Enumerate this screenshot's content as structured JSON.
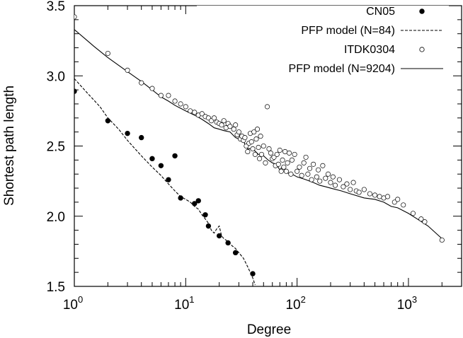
{
  "chart_data": {
    "type": "scatter",
    "xscale": "log",
    "xlabel": "Degree",
    "ylabel": "Shortest path length",
    "xlim": [
      1,
      3000
    ],
    "ylim": [
      1.5,
      3.5
    ],
    "grid": false,
    "legend_position": "top-right",
    "x_ticks": [
      {
        "value": 1,
        "base": "10",
        "exp": "0"
      },
      {
        "value": 10,
        "base": "10",
        "exp": "1"
      },
      {
        "value": 100,
        "base": "10",
        "exp": "2"
      },
      {
        "value": 1000,
        "base": "10",
        "exp": "3"
      }
    ],
    "y_ticks": [
      "1.5",
      "2.0",
      "2.5",
      "3.0",
      "3.5"
    ],
    "series": [
      {
        "name": "CN05",
        "style": "filled-circle",
        "points": [
          [
            1,
            2.89
          ],
          [
            2,
            2.68
          ],
          [
            3,
            2.59
          ],
          [
            4,
            2.56
          ],
          [
            5,
            2.41
          ],
          [
            6,
            2.36
          ],
          [
            7,
            2.26
          ],
          [
            8,
            2.43
          ],
          [
            9,
            2.13
          ],
          [
            12,
            2.09
          ],
          [
            13,
            2.11
          ],
          [
            15,
            2.01
          ],
          [
            16,
            1.93
          ],
          [
            20,
            1.86
          ],
          [
            24,
            1.81
          ],
          [
            28,
            1.74
          ],
          [
            40,
            1.59
          ]
        ]
      },
      {
        "name": "PFP model (N=84)",
        "style": "dashed-line",
        "points": [
          [
            1,
            2.98
          ],
          [
            1.3,
            2.88
          ],
          [
            1.7,
            2.78
          ],
          [
            2,
            2.7
          ],
          [
            2.5,
            2.62
          ],
          [
            3,
            2.54
          ],
          [
            4,
            2.43
          ],
          [
            5,
            2.35
          ],
          [
            6,
            2.29
          ],
          [
            7,
            2.23
          ],
          [
            8,
            2.18
          ],
          [
            9,
            2.14
          ],
          [
            10,
            2.12
          ],
          [
            11,
            2.1
          ],
          [
            12,
            2.07
          ],
          [
            13,
            2.05
          ],
          [
            14,
            2.01
          ],
          [
            15,
            1.98
          ],
          [
            16,
            1.95
          ],
          [
            17,
            1.9
          ],
          [
            18,
            1.88
          ],
          [
            19,
            1.91
          ],
          [
            20,
            1.93
          ],
          [
            21,
            1.86
          ],
          [
            22,
            1.84
          ],
          [
            24,
            1.82
          ],
          [
            26,
            1.79
          ],
          [
            28,
            1.77
          ],
          [
            30,
            1.74
          ],
          [
            33,
            1.7
          ],
          [
            36,
            1.64
          ],
          [
            40,
            1.56
          ],
          [
            42,
            1.51
          ]
        ]
      },
      {
        "name": "ITDK0304",
        "style": "open-circle",
        "points": [
          [
            1,
            3.42
          ],
          [
            2,
            3.16
          ],
          [
            3,
            3.04
          ],
          [
            4,
            2.95
          ],
          [
            5,
            2.91
          ],
          [
            6,
            2.86
          ],
          [
            7,
            2.86
          ],
          [
            8,
            2.82
          ],
          [
            9,
            2.8
          ],
          [
            10,
            2.78
          ],
          [
            11,
            2.75
          ],
          [
            12,
            2.74
          ],
          [
            13,
            2.72
          ],
          [
            14,
            2.73
          ],
          [
            15,
            2.71
          ],
          [
            16,
            2.7
          ],
          [
            17,
            2.68
          ],
          [
            18,
            2.7
          ],
          [
            19,
            2.67
          ],
          [
            20,
            2.66
          ],
          [
            21,
            2.65
          ],
          [
            22,
            2.68
          ],
          [
            23,
            2.63
          ],
          [
            24,
            2.66
          ],
          [
            25,
            2.64
          ],
          [
            27,
            2.62
          ],
          [
            28,
            2.65
          ],
          [
            29,
            2.58
          ],
          [
            30,
            2.6
          ],
          [
            31,
            2.55
          ],
          [
            32,
            2.57
          ],
          [
            33,
            2.54
          ],
          [
            34,
            2.56
          ],
          [
            35,
            2.5
          ],
          [
            36,
            2.46
          ],
          [
            37,
            2.52
          ],
          [
            38,
            2.59
          ],
          [
            39,
            2.53
          ],
          [
            40,
            2.48
          ],
          [
            41,
            2.6
          ],
          [
            42,
            2.44
          ],
          [
            43,
            2.55
          ],
          [
            44,
            2.62
          ],
          [
            45,
            2.49
          ],
          [
            46,
            2.41
          ],
          [
            47,
            2.57
          ],
          [
            48,
            2.44
          ],
          [
            50,
            2.5
          ],
          [
            52,
            2.38
          ],
          [
            54,
            2.78
          ],
          [
            56,
            2.48
          ],
          [
            58,
            2.45
          ],
          [
            60,
            2.41
          ],
          [
            62,
            2.42
          ],
          [
            64,
            2.36
          ],
          [
            66,
            2.44
          ],
          [
            68,
            2.37
          ],
          [
            70,
            2.47
          ],
          [
            72,
            2.32
          ],
          [
            74,
            2.4
          ],
          [
            76,
            2.35
          ],
          [
            78,
            2.46
          ],
          [
            80,
            2.32
          ],
          [
            82,
            2.38
          ],
          [
            85,
            2.45
          ],
          [
            88,
            2.3
          ],
          [
            90,
            2.4
          ],
          [
            95,
            2.44
          ],
          [
            100,
            2.32
          ],
          [
            105,
            2.35
          ],
          [
            110,
            2.29
          ],
          [
            115,
            2.38
          ],
          [
            120,
            2.42
          ],
          [
            125,
            2.3
          ],
          [
            130,
            2.34
          ],
          [
            135,
            2.26
          ],
          [
            140,
            2.37
          ],
          [
            150,
            2.28
          ],
          [
            155,
            2.33
          ],
          [
            160,
            2.25
          ],
          [
            170,
            2.36
          ],
          [
            180,
            2.27
          ],
          [
            190,
            2.3
          ],
          [
            200,
            2.24
          ],
          [
            210,
            2.28
          ],
          [
            220,
            2.22
          ],
          [
            240,
            2.26
          ],
          [
            260,
            2.21
          ],
          [
            280,
            2.23
          ],
          [
            300,
            2.19
          ],
          [
            320,
            2.24
          ],
          [
            340,
            2.18
          ],
          [
            360,
            2.17
          ],
          [
            400,
            2.19
          ],
          [
            450,
            2.16
          ],
          [
            500,
            2.15
          ],
          [
            550,
            2.14
          ],
          [
            600,
            2.13
          ],
          [
            650,
            2.14
          ],
          [
            750,
            2.1
          ],
          [
            800,
            2.12
          ],
          [
            900,
            2.08
          ],
          [
            1100,
            2.02
          ],
          [
            1300,
            1.98
          ],
          [
            1400,
            1.96
          ],
          [
            2000,
            1.83
          ]
        ]
      },
      {
        "name": "PFP model (N=9204)",
        "style": "solid-line",
        "points": [
          [
            1,
            3.33
          ],
          [
            1.5,
            3.21
          ],
          [
            2,
            3.13
          ],
          [
            3,
            3.03
          ],
          [
            4,
            2.96
          ],
          [
            5,
            2.9
          ],
          [
            6,
            2.85
          ],
          [
            7,
            2.82
          ],
          [
            8,
            2.79
          ],
          [
            10,
            2.75
          ],
          [
            12,
            2.72
          ],
          [
            14,
            2.69
          ],
          [
            16,
            2.66
          ],
          [
            18,
            2.63
          ],
          [
            20,
            2.62
          ],
          [
            22,
            2.61
          ],
          [
            25,
            2.6
          ],
          [
            28,
            2.56
          ],
          [
            30,
            2.55
          ],
          [
            32,
            2.58
          ],
          [
            34,
            2.51
          ],
          [
            36,
            2.48
          ],
          [
            40,
            2.48
          ],
          [
            45,
            2.44
          ],
          [
            50,
            2.43
          ],
          [
            55,
            2.4
          ],
          [
            60,
            2.38
          ],
          [
            65,
            2.37
          ],
          [
            70,
            2.33
          ],
          [
            75,
            2.36
          ],
          [
            80,
            2.31
          ],
          [
            90,
            2.3
          ],
          [
            100,
            2.28
          ],
          [
            110,
            2.27
          ],
          [
            120,
            2.26
          ],
          [
            140,
            2.24
          ],
          [
            160,
            2.22
          ],
          [
            180,
            2.21
          ],
          [
            200,
            2.2
          ],
          [
            250,
            2.18
          ],
          [
            300,
            2.16
          ],
          [
            400,
            2.13
          ],
          [
            500,
            2.12
          ],
          [
            600,
            2.1
          ],
          [
            700,
            2.07
          ],
          [
            800,
            2.06
          ],
          [
            1000,
            2.02
          ],
          [
            1200,
            1.98
          ],
          [
            1500,
            1.93
          ],
          [
            2000,
            1.84
          ]
        ]
      }
    ]
  }
}
